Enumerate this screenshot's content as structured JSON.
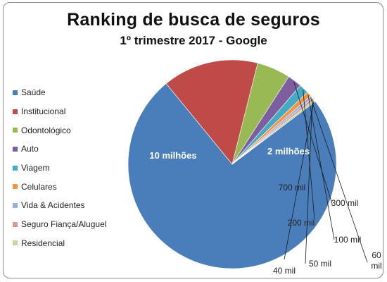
{
  "chart_data": {
    "type": "pie",
    "title": "Ranking de busca de seguros",
    "subtitle": "1º trimestre 2017 - Google",
    "legend_position": "left",
    "slices": [
      {
        "name": "Saúde",
        "value": 10000000,
        "label": "10 milhões",
        "color": "#4a7ebb"
      },
      {
        "name": "Institucional",
        "value": 2000000,
        "label": "2 milhões",
        "color": "#be4b48"
      },
      {
        "name": "Odontológico",
        "value": 700000,
        "label": "700 mil",
        "color": "#98b954"
      },
      {
        "name": "Auto",
        "value": 300000,
        "label": "300 mil",
        "color": "#7d5fa0"
      },
      {
        "name": "Viagem",
        "value": 200000,
        "label": "200 mil",
        "color": "#46aac5"
      },
      {
        "name": "Celulares",
        "value": 100000,
        "label": "100 mil",
        "color": "#f69240"
      },
      {
        "name": "Vida & Acidentes",
        "value": 60000,
        "label": "60 mil",
        "color": "#95b3d7"
      },
      {
        "name": "Seguro Fiança/Aluguel",
        "value": 50000,
        "label": "50 mil",
        "color": "#d99795"
      },
      {
        "name": "Residencial",
        "value": 40000,
        "label": "40 mil",
        "color": "#c3d69b"
      }
    ]
  }
}
